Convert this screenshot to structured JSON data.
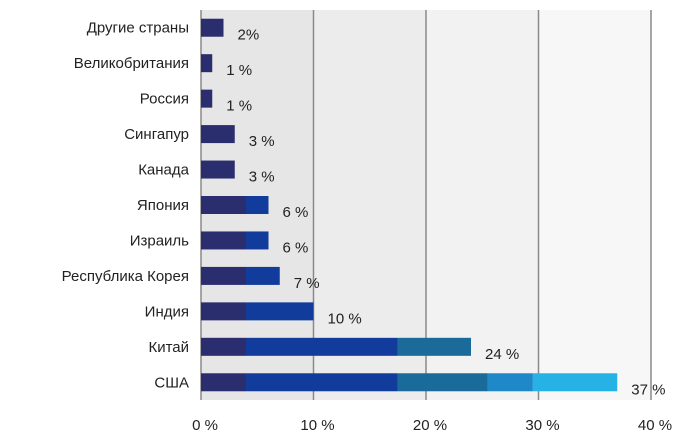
{
  "chart_data": {
    "type": "bar",
    "orientation": "horizontal",
    "categories": [
      "Другие страны",
      "Великобритания",
      "Россия",
      "Сингапур",
      "Канада",
      "Япония",
      "Израиль",
      "Республика Корея",
      "Индия",
      "Китай",
      "США"
    ],
    "values": [
      2,
      1,
      1,
      3,
      3,
      6,
      6,
      7,
      10,
      24,
      37
    ],
    "value_labels": [
      "2%",
      "1 %",
      "1 %",
      "3 %",
      "3 %",
      "6 %",
      "6 %",
      "7 %",
      "10 %",
      "24 %",
      "37 %"
    ],
    "xlim": [
      0,
      40
    ],
    "xticks": [
      0,
      10,
      20,
      30,
      40
    ],
    "xtick_labels": [
      "0 %",
      "10 %",
      "20 %",
      "30 %",
      "40 %"
    ],
    "gridlines": true,
    "colors": {
      "segment_1": "#2b2e6e",
      "segment_2": "#123c9c",
      "segment_3": "#1a6a9a",
      "segment_4": "#1e88c9",
      "segment_5": "#27b2e6",
      "grid": "#8a8a8a",
      "band_1": "#e6e6e6",
      "band_2": "#ececec",
      "band_3": "#f2f2f2",
      "band_4": "#f7f7f7"
    },
    "gradient_breaks": [
      0,
      4,
      17.5,
      25.5,
      29.5,
      40
    ]
  }
}
